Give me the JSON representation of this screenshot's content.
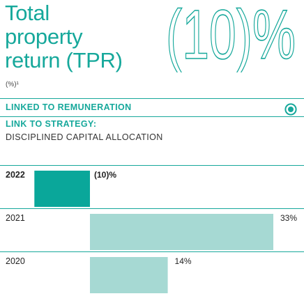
{
  "metric": {
    "title_lines": [
      "Total",
      "property",
      "return (TPR)"
    ],
    "units_note": "(%)¹",
    "headline_value": "(10)%"
  },
  "linked_label": "LINKED TO REMUNERATION",
  "strategy": {
    "label": "LINK TO STRATEGY:",
    "value": "DISCIPLINED CAPITAL ALLOCATION"
  },
  "colors": {
    "accent": "#16a89b",
    "current_bar": "#0aa79a",
    "prior_bar": "#a6d9d3",
    "text": "#333333"
  },
  "icons": {
    "linked": "target-icon"
  },
  "chart_data": {
    "type": "bar",
    "orientation": "horizontal",
    "categories": [
      "2022",
      "2021",
      "2020"
    ],
    "values": [
      -10,
      33,
      14
    ],
    "value_labels": [
      "(10)%",
      "33%",
      "14%"
    ],
    "highlight": "2022",
    "xlim": [
      -10,
      33
    ],
    "grid": false,
    "legend": "none"
  }
}
